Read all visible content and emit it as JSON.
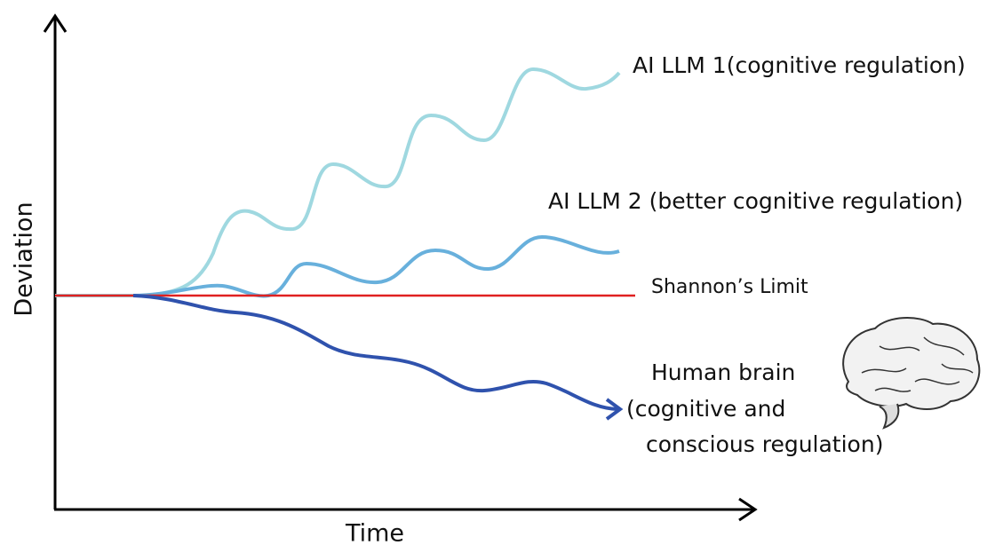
{
  "axes": {
    "y_label": "Deviation",
    "x_label": "Time"
  },
  "curves": [
    {
      "lines": [
        "AI LLM 1(cognitive regulation)"
      ]
    },
    {
      "lines": [
        "AI LLM 2 (better cognitive regulation)"
      ]
    },
    {
      "lines": [
        "Shannon’s Limit"
      ]
    },
    {
      "lines": [
        "Human brain",
        "(cognitive and",
        "conscious regulation)"
      ]
    }
  ]
}
